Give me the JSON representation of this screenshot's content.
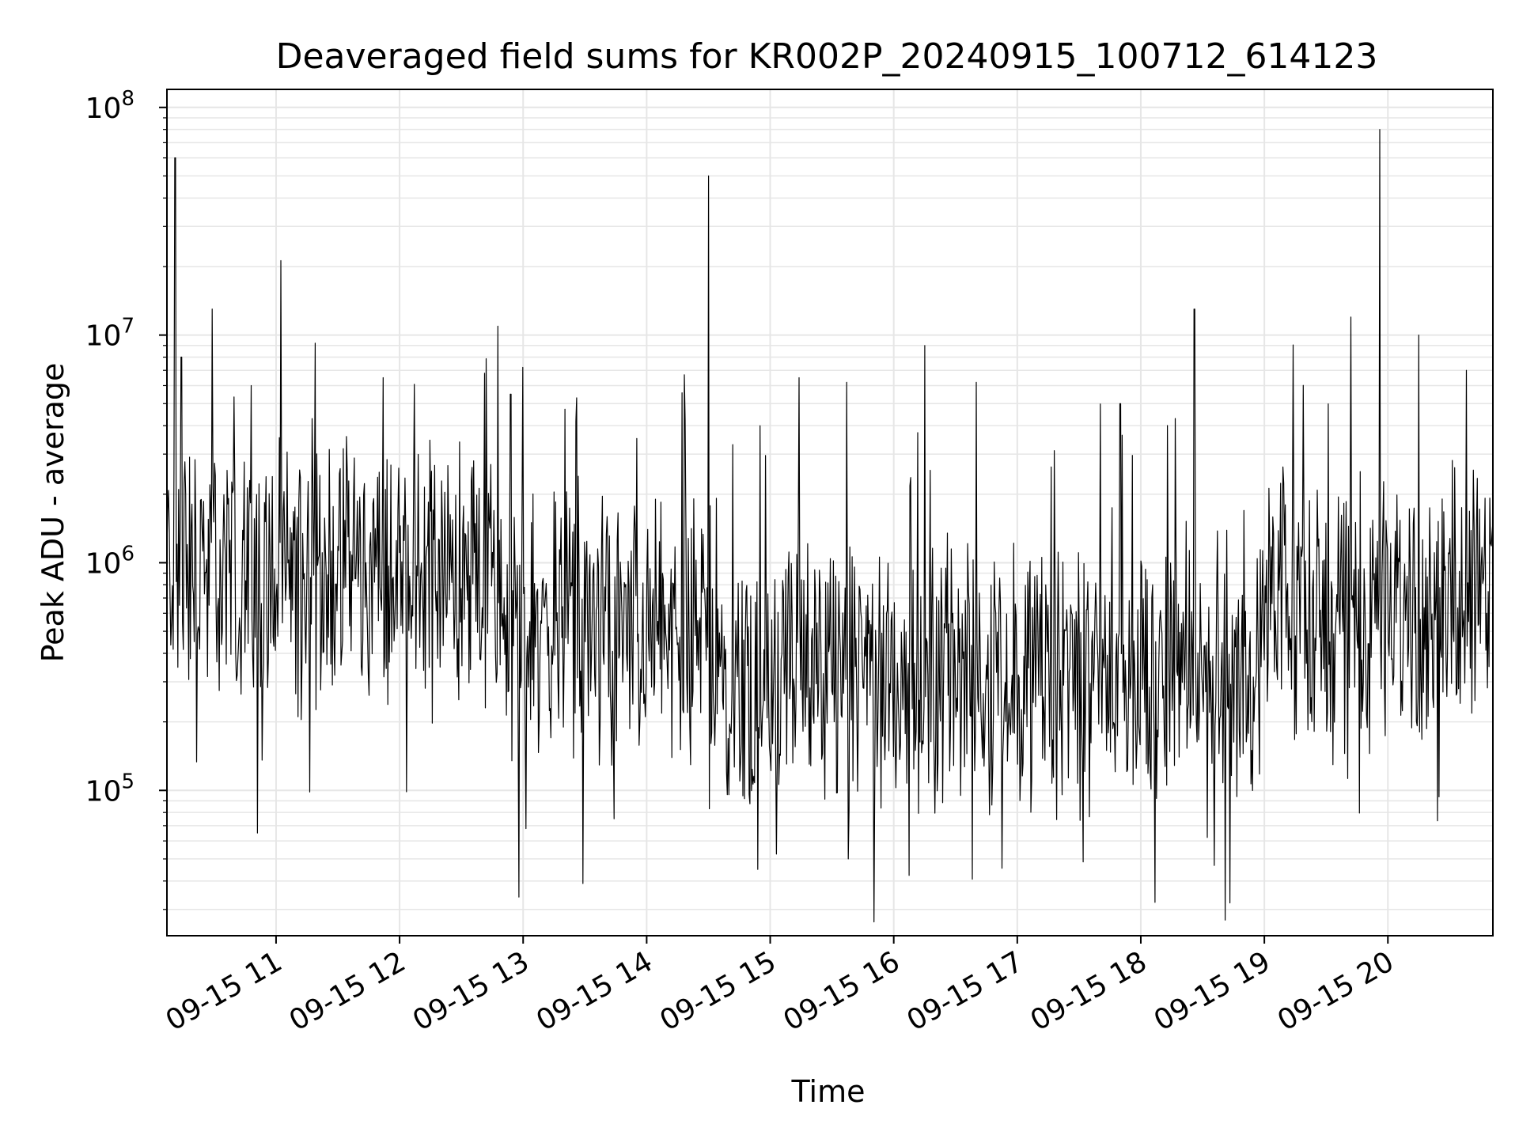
{
  "chart_data": {
    "type": "line",
    "title": "Deaveraged field sums for KR002P_20240915_100712_614123",
    "xlabel": "Time",
    "ylabel": "Peak ADU - average",
    "yscale": "log",
    "ylim": [
      23000,
      120000000
    ],
    "xlim": [
      "2024-09-15 10:07",
      "2024-09-15 20:51"
    ],
    "grid": true,
    "line_color": "#000000",
    "grid_color": "#e6e6e6",
    "x_ticks": [
      "09-15 11",
      "09-15 12",
      "09-15 13",
      "09-15 14",
      "09-15 15",
      "09-15 16",
      "09-15 17",
      "09-15 18",
      "09-15 19",
      "09-15 20"
    ],
    "y_ticks": [
      {
        "value": 100000,
        "base": "10",
        "exp": "5"
      },
      {
        "value": 1000000,
        "base": "10",
        "exp": "6"
      },
      {
        "value": 10000000,
        "base": "10",
        "exp": "7"
      },
      {
        "value": 100000000,
        "base": "10",
        "exp": "8"
      }
    ],
    "series": [
      {
        "values_summary": "dense noisy trace, typical band 1e5 to 3e6",
        "spikes": [
          {
            "x": "2024-09-15 10:11",
            "y": 60000000
          },
          {
            "x": "2024-09-15 10:14",
            "y": 8000000
          },
          {
            "x": "2024-09-15 10:48",
            "y": 6000000
          },
          {
            "x": "2024-09-15 11:52",
            "y": 6500000
          },
          {
            "x": "2024-09-15 12:54",
            "y": 5500000
          },
          {
            "x": "2024-09-15 13:26",
            "y": 5300000
          },
          {
            "x": "2024-09-15 14:30",
            "y": 50000000
          },
          {
            "x": "2024-09-15 14:55",
            "y": 4000000
          },
          {
            "x": "2024-09-15 15:14",
            "y": 6500000
          },
          {
            "x": "2024-09-15 15:37",
            "y": 6200000
          },
          {
            "x": "2024-09-15 16:15",
            "y": 9000000
          },
          {
            "x": "2024-09-15 16:40",
            "y": 6200000
          },
          {
            "x": "2024-09-15 17:50",
            "y": 5000000
          },
          {
            "x": "2024-09-15 18:26",
            "y": 13000000
          },
          {
            "x": "2024-09-15 19:42",
            "y": 12000000
          },
          {
            "x": "2024-09-15 19:56",
            "y": 80000000
          },
          {
            "x": "2024-09-15 20:15",
            "y": 10000000
          },
          {
            "x": "2024-09-15 20:38",
            "y": 7000000
          },
          {
            "x": "2024-09-15 12:58",
            "y": 34000
          },
          {
            "x": "2024-09-15 13:29",
            "y": 39000
          },
          {
            "x": "2024-09-15 14:54",
            "y": 45000
          },
          {
            "x": "2024-09-15 10:51",
            "y": 65000
          },
          {
            "x": "2024-09-15 15:38",
            "y": 50000
          }
        ]
      }
    ]
  }
}
